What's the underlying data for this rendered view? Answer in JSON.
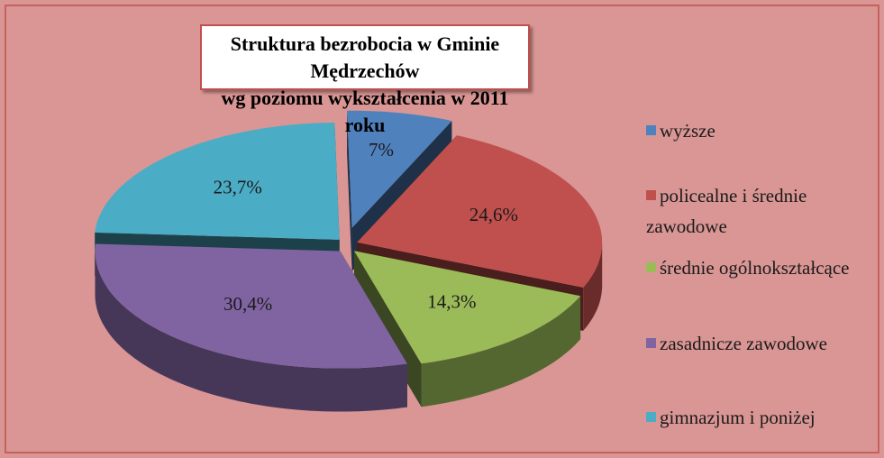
{
  "chart_data": {
    "type": "pie",
    "title": [
      "Struktura bezrobocia  w Gminie Mędrzechów",
      "wg  poziomu wykształcenia w 2011 roku"
    ],
    "categories": [
      "wyższe",
      "policealne i średnie zawodowe",
      "średnie ogólnokształcące",
      "zasadnicze zawodowe",
      "gimnazjum i poniżej"
    ],
    "values": [
      7,
      24.6,
      14.3,
      30.4,
      23.7
    ],
    "value_labels": [
      "7%",
      "24,6%",
      "14,3%",
      "30,4%",
      "23,7%"
    ],
    "colors": [
      "#4f81bd",
      "#c0504d",
      "#9bbb59",
      "#8064a2",
      "#4bacc6"
    ],
    "legend": "right"
  }
}
